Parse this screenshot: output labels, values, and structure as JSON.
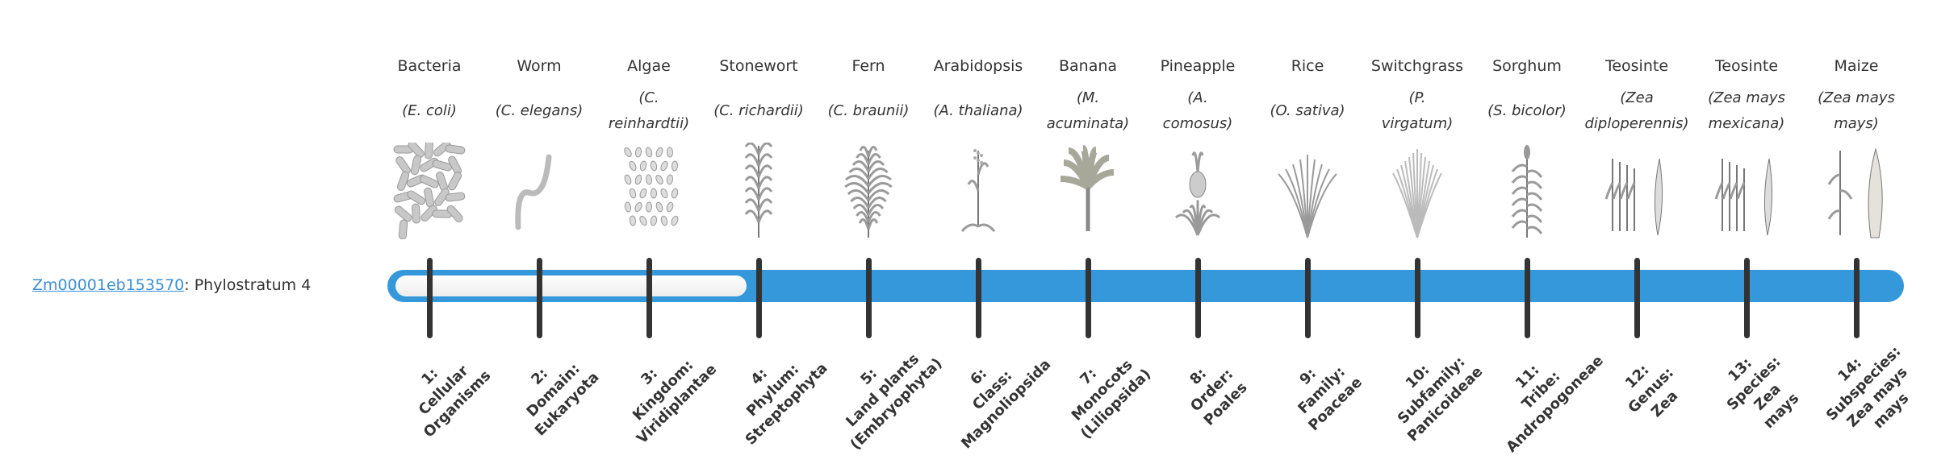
{
  "gene": {
    "id": "Zm00001eb153570",
    "separator": ": ",
    "stratum_text": "Phylostratum 4"
  },
  "phylostratum_value": 4,
  "phylostratum_max": 14,
  "colors": {
    "bar": "#3498db",
    "link": "#3a8fd9",
    "tick": "#333333"
  },
  "organisms": [
    {
      "name": "Bacteria",
      "species": [
        "(E. coli)"
      ],
      "icon": "bacteria",
      "stratum": [
        "1:",
        "Cellular",
        "Organisms"
      ]
    },
    {
      "name": "Worm",
      "species": [
        "(C. elegans)"
      ],
      "icon": "worm",
      "stratum": [
        "2:",
        "Domain:",
        "Eukaryota"
      ]
    },
    {
      "name": "Algae",
      "species": [
        "(C.",
        "reinhardtii)"
      ],
      "icon": "algae",
      "stratum": [
        "3:",
        "Kingdom:",
        "Viridiplantae"
      ]
    },
    {
      "name": "Stonewort",
      "species": [
        "(C. richardii)"
      ],
      "icon": "stonewort",
      "stratum": [
        "4:",
        "Phylum:",
        "Streptophyta"
      ]
    },
    {
      "name": "Fern",
      "species": [
        "(C. braunii)"
      ],
      "icon": "fern",
      "stratum": [
        "5:",
        "Land plants",
        "(Embryophyta)"
      ]
    },
    {
      "name": "Arabidopsis",
      "species": [
        "(A. thaliana)"
      ],
      "icon": "arabidopsis",
      "stratum": [
        "6:",
        "Class:",
        "Magnoliopsida"
      ]
    },
    {
      "name": "Banana",
      "species": [
        "(M.",
        "acuminata)"
      ],
      "icon": "banana",
      "stratum": [
        "7:",
        "Monocots",
        "(Liliopsida)"
      ]
    },
    {
      "name": "Pineapple",
      "species": [
        "(A.",
        "comosus)"
      ],
      "icon": "pineapple",
      "stratum": [
        "8:",
        "Order:",
        "Poales"
      ]
    },
    {
      "name": "Rice",
      "species": [
        "(O. sativa)"
      ],
      "icon": "rice",
      "stratum": [
        "9:",
        "Family:",
        "Poaceae"
      ]
    },
    {
      "name": "Switchgrass",
      "species": [
        "(P.",
        "virgatum)"
      ],
      "icon": "switchgrass",
      "stratum": [
        "10:",
        "Subfamily:",
        "Panicoideae"
      ]
    },
    {
      "name": "Sorghum",
      "species": [
        "(S. bicolor)"
      ],
      "icon": "sorghum",
      "stratum": [
        "11:",
        "Tribe:",
        "Andropogoneae"
      ]
    },
    {
      "name": "Teosinte",
      "species": [
        "(Zea",
        "diploperennis)"
      ],
      "icon": "teosinte",
      "stratum": [
        "12:",
        "Genus:",
        "Zea"
      ]
    },
    {
      "name": "Teosinte",
      "species": [
        "(Zea mays",
        "mexicana)"
      ],
      "icon": "teosinte",
      "stratum": [
        "13:",
        "Species:",
        "Zea",
        "mays"
      ]
    },
    {
      "name": "Maize",
      "species": [
        "(Zea mays",
        "mays)"
      ],
      "icon": "maize",
      "stratum": [
        "14:",
        "Subspecies:",
        "Zea mays",
        "mays"
      ]
    }
  ]
}
